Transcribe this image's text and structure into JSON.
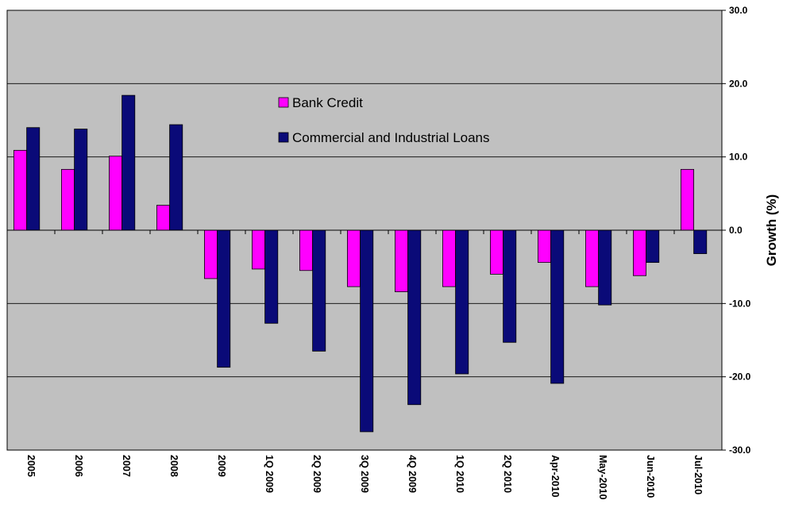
{
  "chart_data": {
    "type": "bar",
    "title": "",
    "xlabel": "",
    "ylabel": "Growth (%)",
    "ylim": [
      -30,
      30
    ],
    "y_ticks": [
      30,
      20,
      10,
      0,
      -10,
      -20,
      -30
    ],
    "y_tick_labels": [
      "30.0",
      "20.0",
      "10.0",
      "0.0",
      "-10.0",
      "-20.0",
      "-30.0"
    ],
    "y_axis_side": "right",
    "grid": true,
    "legend_position": "top-center",
    "categories": [
      "2005",
      "2006",
      "2007",
      "2008",
      "2009",
      "1Q 2009",
      "2Q 2009",
      "3Q 2009",
      "4Q 2009",
      "1Q 2010",
      "2Q 2010",
      "Apr-2010",
      "May-2010",
      "Jun-2010",
      "Jul-2010"
    ],
    "series": [
      {
        "name": "Bank Credit",
        "color": "#ff00ff",
        "values": [
          10.9,
          8.3,
          10.1,
          3.4,
          -6.6,
          -5.3,
          -5.5,
          -7.7,
          -8.4,
          -7.7,
          -6.0,
          -4.4,
          -7.7,
          -6.2,
          8.3
        ]
      },
      {
        "name": "Commercial and Industrial Loans",
        "color": "#0a0a78",
        "values": [
          14.0,
          13.8,
          18.4,
          14.4,
          -18.7,
          -12.7,
          -16.5,
          -27.5,
          -23.8,
          -19.6,
          -15.3,
          -20.9,
          -10.2,
          -4.4,
          -3.2
        ]
      }
    ]
  },
  "colors": {
    "plot_background": "#c0c0c0",
    "gridline": "#000000"
  }
}
